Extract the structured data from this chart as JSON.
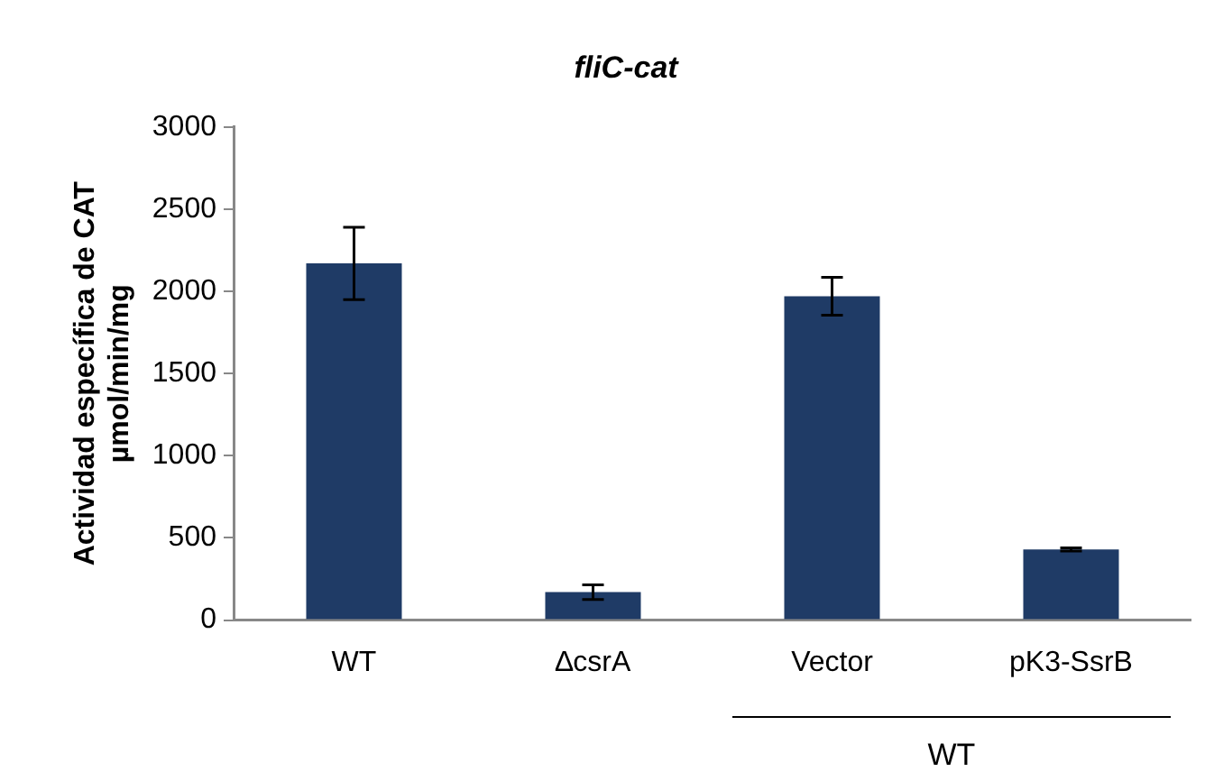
{
  "chart_data": {
    "type": "bar",
    "title": "fliC-cat",
    "ylabel": "Actividad específica de CAT\nµmol/min/mg",
    "categories": [
      "WT",
      "∆csrA",
      "Vector",
      "pK3-SsrB"
    ],
    "values": [
      2170,
      170,
      1970,
      430
    ],
    "errors": [
      220,
      45,
      115,
      10
    ],
    "color": "#1f3b66",
    "ylim": [
      0,
      3000
    ],
    "yticks": [
      0,
      500,
      1000,
      1500,
      2000,
      2500,
      3000
    ],
    "grid": false,
    "legend": false,
    "annotations": [
      "WT"
    ]
  }
}
